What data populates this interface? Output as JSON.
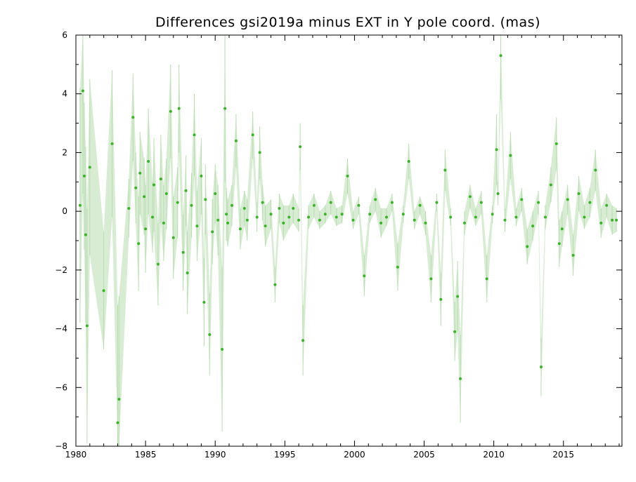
{
  "chart_data": {
    "type": "scatter",
    "title": "Differences gsi2019a minus EXT in Y pole coord. (mas)",
    "xlabel": "",
    "ylabel": "",
    "xlim": [
      1980,
      2019.2
    ],
    "ylim": [
      -8,
      6
    ],
    "xticks": [
      1980,
      1985,
      1990,
      1995,
      2000,
      2005,
      2010,
      2015
    ],
    "yticks": [
      -8,
      -6,
      -4,
      -2,
      0,
      2,
      4,
      6
    ],
    "xtick_labels": [
      "1980",
      "1985",
      "1990",
      "1995",
      "2000",
      "2005",
      "2010",
      "2015"
    ],
    "ytick_labels": [
      "−8",
      "−6",
      "−4",
      "−2",
      "0",
      "2",
      "4",
      "6"
    ],
    "grid": false,
    "colors": {
      "points": "#3cb22a",
      "error_bars": "#b8dcb0",
      "axes": "#000000"
    },
    "series": [
      {
        "x": [
          1980.3,
          1980.5,
          1980.6,
          1980.7,
          1980.8,
          1981.0,
          1982.0,
          1982.6,
          1983.0,
          1983.1,
          1983.8,
          1984.1,
          1984.3,
          1984.5,
          1984.6,
          1984.9,
          1985.0,
          1985.2,
          1985.5,
          1985.6,
          1985.9,
          1986.1,
          1986.3,
          1986.5,
          1986.8,
          1987.0,
          1987.3,
          1987.4,
          1987.7,
          1987.9,
          1988.0,
          1988.3,
          1988.5,
          1988.7,
          1989.0,
          1989.2,
          1989.3,
          1989.6,
          1989.8,
          1990.0,
          1990.2,
          1990.5,
          1990.7,
          1990.8,
          1990.9,
          1991.2,
          1991.5,
          1991.8,
          1992.1,
          1992.3,
          1992.7,
          1993.0,
          1993.2,
          1993.4,
          1993.6,
          1994.0,
          1994.3,
          1994.6,
          1994.9,
          1995.3,
          1995.6,
          1996.0,
          1996.1,
          1996.3,
          1996.7,
          1997.1,
          1997.5,
          1997.9,
          1998.3,
          1998.7,
          1999.1,
          1999.5,
          1999.9,
          2000.3,
          2000.7,
          2001.1,
          2001.5,
          2001.9,
          2002.3,
          2002.7,
          2003.1,
          2003.5,
          2003.9,
          2004.3,
          2004.7,
          2005.1,
          2005.5,
          2005.9,
          2006.2,
          2006.5,
          2006.9,
          2007.2,
          2007.4,
          2007.6,
          2007.9,
          2008.3,
          2008.7,
          2009.1,
          2009.5,
          2009.9,
          2010.2,
          2010.3,
          2010.5,
          2010.8,
          2011.2,
          2011.6,
          2012.0,
          2012.4,
          2012.8,
          2013.2,
          2013.4,
          2013.7,
          2014.1,
          2014.5,
          2014.7,
          2014.9,
          2015.3,
          2015.7,
          2016.1,
          2016.5,
          2016.9,
          2017.3,
          2017.7,
          2018.1,
          2018.5,
          2018.8
        ],
        "y": [
          0.2,
          4.1,
          1.2,
          -0.8,
          -3.9,
          1.5,
          -2.7,
          2.3,
          -7.2,
          -6.4,
          0.1,
          3.2,
          0.8,
          -1.1,
          1.3,
          0.5,
          -0.6,
          1.7,
          -0.2,
          0.9,
          -1.8,
          1.1,
          -0.4,
          0.6,
          3.4,
          -0.9,
          0.3,
          3.5,
          -1.4,
          0.7,
          -2.1,
          0.2,
          2.6,
          -0.5,
          1.2,
          -3.1,
          0.4,
          -4.2,
          -0.7,
          0.6,
          -0.3,
          -4.7,
          3.5,
          -0.1,
          -0.4,
          0.2,
          2.4,
          -0.6,
          0.1,
          -0.3,
          2.6,
          -0.2,
          2.0,
          0.3,
          -0.5,
          -0.1,
          -2.5,
          0.1,
          -0.4,
          -0.2,
          0.1,
          -0.3,
          2.2,
          -4.4,
          -0.2,
          0.2,
          -0.3,
          -0.1,
          0.3,
          -0.2,
          -0.1,
          1.2,
          -0.3,
          0.2,
          -2.2,
          -0.1,
          0.4,
          -0.4,
          -0.2,
          0.3,
          -1.9,
          -0.1,
          1.7,
          -0.3,
          0.2,
          -0.4,
          -2.3,
          0.3,
          -3.0,
          1.4,
          -0.2,
          -4.1,
          -2.9,
          -5.7,
          -0.4,
          0.5,
          -0.2,
          0.3,
          -2.3,
          -0.1,
          2.1,
          0.6,
          5.3,
          -0.3,
          1.9,
          -0.2,
          0.4,
          -1.2,
          -0.5,
          0.3,
          -5.3,
          -0.2,
          0.9,
          2.3,
          -1.1,
          -0.6,
          0.4,
          -1.5,
          0.6,
          -0.2,
          0.3,
          1.4,
          -0.4,
          0.2,
          -0.3,
          -0.3
        ],
        "err": [
          4.0,
          3.5,
          2.5,
          3.0,
          4.0,
          3.0,
          2.0,
          2.5,
          4.0,
          3.5,
          1.0,
          1.5,
          1.2,
          1.6,
          1.4,
          1.3,
          1.5,
          1.8,
          1.2,
          1.6,
          1.4,
          1.5,
          1.3,
          1.2,
          1.6,
          1.4,
          1.2,
          1.5,
          1.3,
          1.2,
          1.4,
          1.1,
          1.4,
          1.2,
          1.3,
          1.5,
          1.2,
          1.4,
          1.1,
          1.0,
          1.2,
          2.8,
          2.5,
          0.9,
          0.8,
          0.7,
          0.9,
          0.7,
          0.6,
          0.7,
          0.8,
          0.5,
          0.9,
          0.6,
          0.7,
          0.5,
          0.6,
          0.5,
          0.6,
          0.4,
          0.5,
          0.4,
          0.8,
          1.2,
          0.4,
          0.4,
          0.3,
          0.3,
          0.4,
          0.3,
          0.3,
          0.6,
          0.3,
          0.3,
          0.7,
          0.3,
          0.4,
          0.5,
          0.3,
          0.3,
          0.8,
          0.3,
          0.6,
          0.3,
          0.3,
          0.4,
          0.8,
          0.3,
          0.9,
          0.7,
          0.3,
          1.0,
          1.2,
          1.5,
          0.4,
          0.4,
          0.3,
          0.4,
          0.8,
          0.3,
          1.2,
          0.4,
          1.5,
          0.4,
          0.8,
          0.3,
          0.4,
          0.6,
          0.5,
          0.4,
          1.0,
          0.4,
          0.6,
          0.9,
          0.8,
          0.6,
          0.5,
          0.7,
          0.6,
          0.4,
          0.5,
          0.7,
          0.5,
          0.4,
          0.5,
          0.4
        ]
      }
    ]
  }
}
